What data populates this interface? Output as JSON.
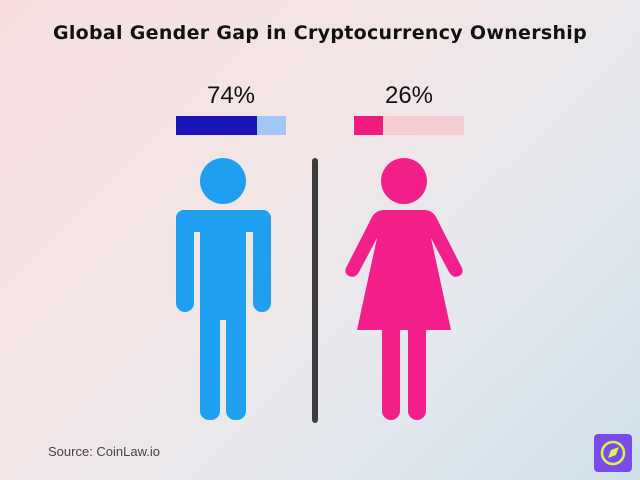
{
  "chart_data": {
    "type": "bar",
    "title": "Global Gender Gap in Cryptocurrency Ownership",
    "categories": [
      "Male",
      "Female"
    ],
    "values": [
      74,
      26
    ],
    "labels": [
      "74%",
      "26%"
    ],
    "unit": "%",
    "colors": {
      "male_fill": "#1a13b5",
      "male_track": "#a3c7f5",
      "male_icon": "#1e9ff0",
      "female_fill": "#f2197f",
      "female_track": "#f5cdd3",
      "female_icon": "#f31f8a",
      "divider": "#3d3d3d"
    }
  },
  "footer": {
    "source": "Source: CoinLaw.io"
  },
  "logo": {
    "icon": "compass-icon",
    "background": "#7b49f0",
    "foreground": "#d8f542"
  }
}
